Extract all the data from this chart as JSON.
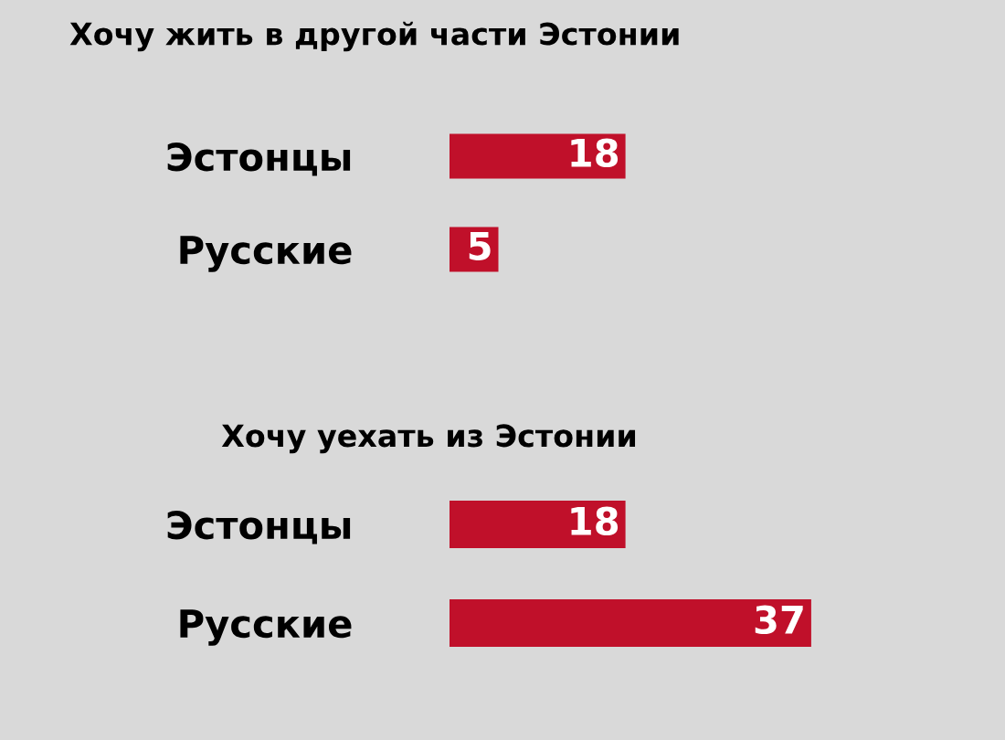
{
  "chart_data": [
    {
      "type": "bar",
      "orientation": "horizontal",
      "title": "Хочу жить в другой части Эстонии",
      "categories": [
        "Эстонцы",
        "Русские"
      ],
      "values": [
        18,
        5
      ],
      "color": "#c0102a",
      "data_labels": true
    },
    {
      "type": "bar",
      "orientation": "horizontal",
      "title": "Хочу уехать из Эстонии",
      "categories": [
        "Эстонцы",
        "Русские"
      ],
      "values": [
        18,
        37
      ],
      "color": "#c0102a",
      "data_labels": true
    }
  ]
}
